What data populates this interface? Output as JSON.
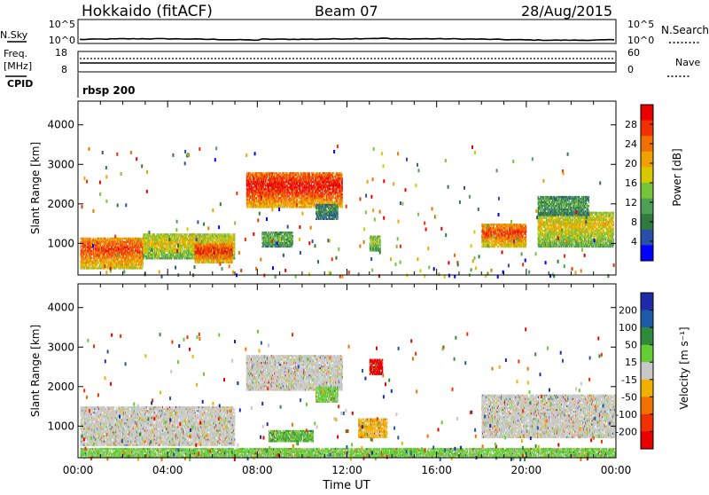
{
  "header": {
    "station": "Hokkaido (fitACF)",
    "beam": "Beam 07",
    "date": "28/Aug/2015"
  },
  "top_panels": {
    "nsky_label": "N.Sky",
    "nsky_ticks": [
      "10^5",
      "10^0"
    ],
    "nsearch_label": "N.Search",
    "nsearch_ticks": [
      "10^5",
      "10^0"
    ],
    "freq_label": "Freq.",
    "freq_unit": "[MHz]",
    "freq_ticks": [
      "18",
      "8"
    ],
    "nave_label": "Nave",
    "nave_ticks": [
      "60",
      "0"
    ],
    "cpid_label": "CPID",
    "cpid_value": "rbsp 200"
  },
  "chart_data": [
    {
      "type": "heatmap",
      "name": "power",
      "xlabel": "",
      "ylabel": "Slant Range [km]",
      "xlim": [
        0,
        24
      ],
      "ylim": [
        200,
        4600
      ],
      "yticks": [
        "1000",
        "2000",
        "3000",
        "4000"
      ],
      "colorbar": {
        "label": "Power [dB]",
        "ticks": [
          "4",
          "8",
          "12",
          "16",
          "20",
          "24",
          "28"
        ],
        "colors": [
          "#0000ff",
          "#2a4fa8",
          "#2f7a3c",
          "#4e9e55",
          "#76c43a",
          "#d8c800",
          "#f0a000",
          "#f07000",
          "#f03000",
          "#e80000"
        ]
      },
      "regions": [
        {
          "t": [
            0.1,
            2.9
          ],
          "r": [
            350,
            1150
          ],
          "level": 0.85
        },
        {
          "t": [
            2.9,
            7.0
          ],
          "r": [
            600,
            1250
          ],
          "level": 0.6
        },
        {
          "t": [
            5.2,
            6.9
          ],
          "r": [
            500,
            1000
          ],
          "level": 0.9
        },
        {
          "t": [
            7.5,
            11.8
          ],
          "r": [
            1900,
            2800
          ],
          "level": 0.95
        },
        {
          "t": [
            8.2,
            9.6
          ],
          "r": [
            900,
            1300
          ],
          "level": 0.4
        },
        {
          "t": [
            10.6,
            11.6
          ],
          "r": [
            1600,
            2000
          ],
          "level": 0.3
        },
        {
          "t": [
            13.0,
            13.5
          ],
          "r": [
            800,
            1200
          ],
          "level": 0.5
        },
        {
          "t": [
            18.0,
            20.0
          ],
          "r": [
            900,
            1500
          ],
          "level": 0.85
        },
        {
          "t": [
            20.5,
            23.9
          ],
          "r": [
            900,
            1800
          ],
          "level": 0.6
        },
        {
          "t": [
            20.5,
            22.8
          ],
          "r": [
            1700,
            2200
          ],
          "level": 0.35
        }
      ]
    },
    {
      "type": "heatmap",
      "name": "velocity",
      "xlabel": "Time UT",
      "ylabel": "Slant Range [km]",
      "xlim": [
        0,
        24
      ],
      "ylim": [
        200,
        4600
      ],
      "xticks": [
        "00:00",
        "04:00",
        "08:00",
        "12:00",
        "16:00",
        "20:00",
        "00:00"
      ],
      "yticks": [
        "1000",
        "2000",
        "3000",
        "4000"
      ],
      "colorbar": {
        "label": "Velocity [m s⁻¹]",
        "ticks": [
          "200",
          "100",
          "50",
          "15",
          "-15",
          "-50",
          "-100",
          "-200"
        ],
        "colors": [
          "#1f2aa8",
          "#1f5aa8",
          "#2f8a3c",
          "#66cc33",
          "#c8c8c8",
          "#f0b000",
          "#f07000",
          "#f03000",
          "#e80000"
        ]
      },
      "regions": [
        {
          "t": [
            0.1,
            7.0
          ],
          "r": [
            500,
            1500
          ],
          "level": 0.5
        },
        {
          "t": [
            7.5,
            11.8
          ],
          "r": [
            1900,
            2800
          ],
          "level": 0.5
        },
        {
          "t": [
            8.5,
            10.5
          ],
          "r": [
            600,
            900
          ],
          "level": 0.65
        },
        {
          "t": [
            10.6,
            11.6
          ],
          "r": [
            1600,
            2000
          ],
          "level": 0.6
        },
        {
          "t": [
            13.0,
            13.6
          ],
          "r": [
            2300,
            2700
          ],
          "level": 0.05
        },
        {
          "t": [
            12.5,
            13.8
          ],
          "r": [
            700,
            1200
          ],
          "level": 0.4
        },
        {
          "t": [
            18.0,
            24.0
          ],
          "r": [
            700,
            1800
          ],
          "level": 0.5
        },
        {
          "t": [
            0.1,
            24.0
          ],
          "r": [
            200,
            450
          ],
          "level": 0.6
        }
      ]
    }
  ]
}
